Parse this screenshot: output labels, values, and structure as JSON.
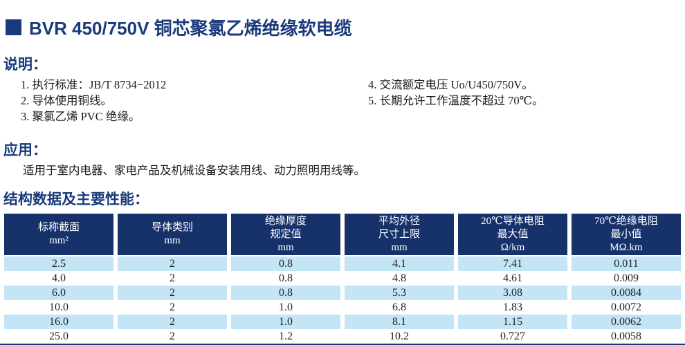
{
  "page": {
    "title": "BVR 450/750V 铜芯聚氯乙烯绝缘软电缆",
    "colors": {
      "accent_navy": "#1A3A7C",
      "table_header_bg": "#17326B",
      "table_row_alt": "#C3E5F6",
      "body_text": "#1A1A1A"
    }
  },
  "description": {
    "heading": "说明：",
    "items_left": [
      "1. 执行标准：JB/T 8734−2012",
      "2. 导体使用铜线。",
      "3. 聚氯乙烯 PVC 绝缘。"
    ],
    "items_right": [
      "4. 交流额定电压 Uo/U450/750V。",
      "5. 长期允许工作温度不超过 70℃。"
    ]
  },
  "application": {
    "heading": "应用：",
    "text": "适用于室内电器、家电产品及机械设备安装用线、动力照明用线等。"
  },
  "spec_table": {
    "heading": "结构数据及主要性能：",
    "columns": [
      {
        "lines": [
          "标称截面",
          "mm²"
        ]
      },
      {
        "lines": [
          "导体类别",
          "mm"
        ]
      },
      {
        "lines": [
          "绝缘厚度",
          "规定值",
          "mm"
        ]
      },
      {
        "lines": [
          "平均外径",
          "尺寸上限",
          "mm"
        ]
      },
      {
        "lines": [
          "20℃导体电阻",
          "最大值",
          "Ω/km"
        ]
      },
      {
        "lines": [
          "70℃绝缘电阻",
          "最小值",
          "MΩ.km"
        ]
      }
    ],
    "rows": [
      [
        "2.5",
        "2",
        "0.8",
        "4.1",
        "7.41",
        "0.011"
      ],
      [
        "4.0",
        "2",
        "0.8",
        "4.8",
        "4.61",
        "0.009"
      ],
      [
        "6.0",
        "2",
        "0.8",
        "5.3",
        "3.08",
        "0.0084"
      ],
      [
        "10.0",
        "2",
        "1.0",
        "6.8",
        "1.83",
        "0.0072"
      ],
      [
        "16.0",
        "2",
        "1.0",
        "8.1",
        "1.15",
        "0.0062"
      ],
      [
        "25.0",
        "2",
        "1.2",
        "10.2",
        "0.727",
        "0.0058"
      ]
    ]
  }
}
